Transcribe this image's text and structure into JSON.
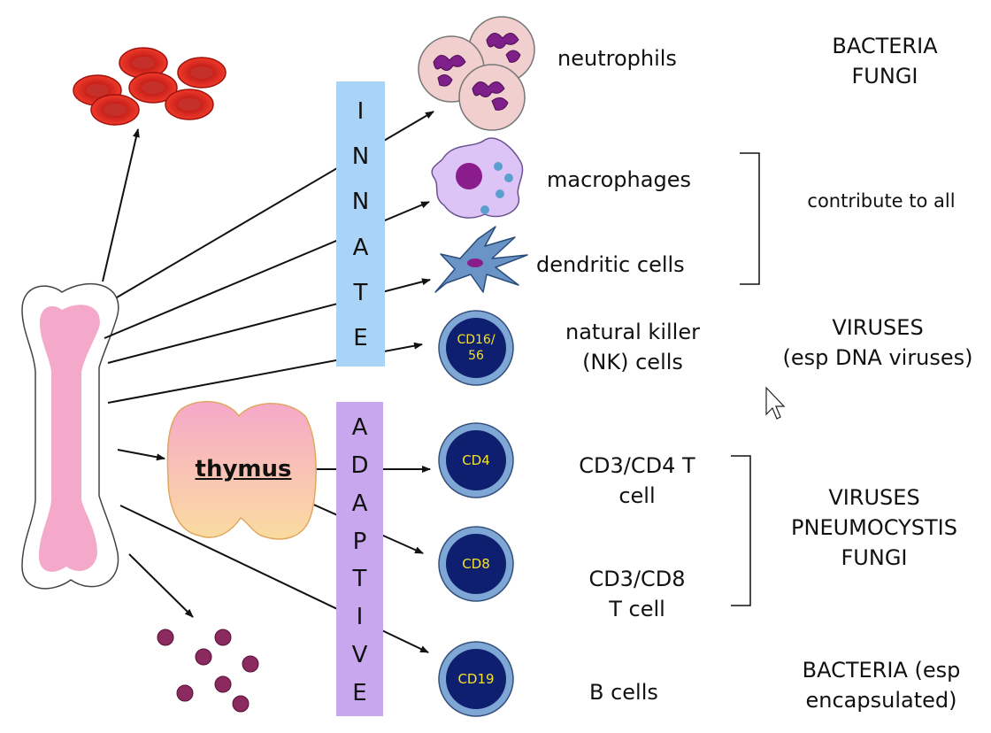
{
  "innate_label": [
    "I",
    "N",
    "N",
    "A",
    "T",
    "E"
  ],
  "adaptive_label": [
    "A",
    "D",
    "A",
    "P",
    "T",
    "I",
    "V",
    "E"
  ],
  "thymus": "thymus",
  "cells": {
    "neutrophils": "neutrophils",
    "macrophages": "macrophages",
    "dendritic": "dendritic cells",
    "nk": "natural killer\n(NK) cells",
    "cd4t": "CD3/CD4 T\ncell",
    "cd8t": "CD3/CD8\nT cell",
    "bcells": "B cells"
  },
  "markers": {
    "nk": "CD16/\n56",
    "cd4": "CD4",
    "cd8": "CD8",
    "cd19": "CD19"
  },
  "targets": {
    "neutrophils": "BACTERIA\nFUNGI",
    "mac_dc": "contribute to all",
    "nk": "VIRUSES\n(esp DNA viruses)",
    "t_cells": "VIRUSES\nPNEUMOCYSTIS\nFUNGI",
    "b_cells": "BACTERIA (esp\nencapsulated)"
  },
  "colors": {
    "innate_box": "#a9d3f7",
    "adaptive_box": "#c9a7ef",
    "rbc": "#e8281c",
    "bone_fill": "#f4a9cb",
    "lymph_outer": "#7fa7d6",
    "lymph_inner": "#0d1f6e",
    "marker_text": "#f5e12a"
  }
}
